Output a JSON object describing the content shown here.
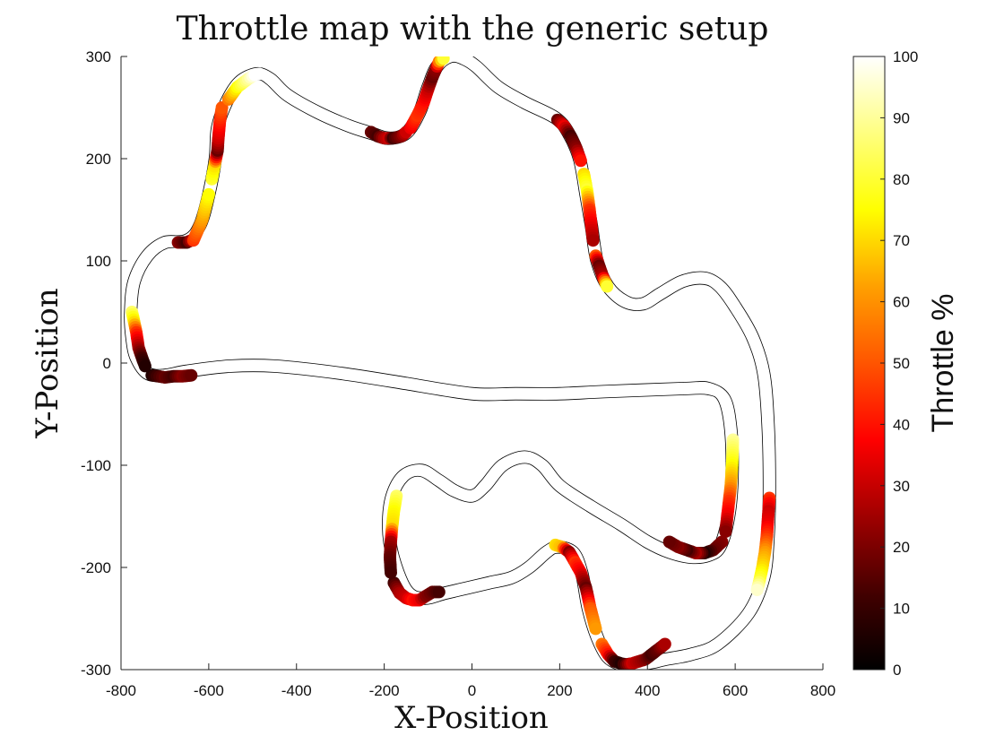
{
  "chart_data": {
    "type": "scatter",
    "title": "Throttle map with the generic setup",
    "xlabel": "X-Position",
    "ylabel": "Y-Position",
    "xlim": [
      -800,
      800
    ],
    "ylim": [
      -300,
      300
    ],
    "xticks": [
      -800,
      -600,
      -400,
      -200,
      0,
      200,
      400,
      600,
      800
    ],
    "yticks": [
      -300,
      -200,
      -100,
      0,
      100,
      200,
      300
    ],
    "grid": false,
    "colorbar": {
      "label": "Throttle %",
      "min": 0,
      "max": 100,
      "ticks": [
        0,
        10,
        20,
        30,
        40,
        50,
        60,
        70,
        80,
        90,
        100
      ],
      "colormap": "hot"
    },
    "track_halfwidth": 7,
    "track_outline_color": "#000000",
    "track_centerline": [
      [
        -150,
        -20
      ],
      [
        -300,
        -10
      ],
      [
        -450,
        -3
      ],
      [
        -550,
        -3
      ],
      [
        -650,
        -8
      ],
      [
        -700,
        -12
      ],
      [
        -740,
        -10
      ],
      [
        -765,
        5
      ],
      [
        -775,
        25
      ],
      [
        -778,
        50
      ],
      [
        -770,
        80
      ],
      [
        -740,
        105
      ],
      [
        -700,
        118
      ],
      [
        -650,
        120
      ],
      [
        -620,
        135
      ],
      [
        -600,
        165
      ],
      [
        -585,
        200
      ],
      [
        -580,
        230
      ],
      [
        -560,
        255
      ],
      [
        -530,
        275
      ],
      [
        -490,
        283
      ],
      [
        -460,
        278
      ],
      [
        -420,
        262
      ],
      [
        -350,
        245
      ],
      [
        -280,
        232
      ],
      [
        -230,
        225
      ],
      [
        -190,
        220
      ],
      [
        -150,
        225
      ],
      [
        -120,
        245
      ],
      [
        -100,
        270
      ],
      [
        -80,
        290
      ],
      [
        -50,
        300
      ],
      [
        -20,
        298
      ],
      [
        10,
        290
      ],
      [
        60,
        270
      ],
      [
        120,
        255
      ],
      [
        190,
        240
      ],
      [
        220,
        225
      ],
      [
        245,
        200
      ],
      [
        260,
        165
      ],
      [
        272,
        135
      ],
      [
        285,
        100
      ],
      [
        310,
        75
      ],
      [
        350,
        60
      ],
      [
        390,
        58
      ],
      [
        430,
        68
      ],
      [
        480,
        80
      ],
      [
        530,
        83
      ],
      [
        565,
        75
      ],
      [
        600,
        55
      ],
      [
        640,
        25
      ],
      [
        665,
        -10
      ],
      [
        675,
        -60
      ],
      [
        678,
        -120
      ],
      [
        675,
        -170
      ],
      [
        665,
        -210
      ],
      [
        630,
        -245
      ],
      [
        560,
        -275
      ],
      [
        500,
        -285
      ],
      [
        440,
        -290
      ],
      [
        410,
        -293
      ],
      [
        370,
        -295
      ],
      [
        340,
        -295
      ],
      [
        310,
        -288
      ],
      [
        285,
        -268
      ],
      [
        265,
        -240
      ],
      [
        250,
        -205
      ],
      [
        230,
        -185
      ],
      [
        195,
        -180
      ],
      [
        170,
        -185
      ],
      [
        130,
        -200
      ],
      [
        90,
        -210
      ],
      [
        40,
        -215
      ],
      [
        -10,
        -220
      ],
      [
        -60,
        -225
      ],
      [
        -110,
        -230
      ],
      [
        -150,
        -222
      ],
      [
        -180,
        -190
      ],
      [
        -190,
        -160
      ],
      [
        -182,
        -130
      ],
      [
        -155,
        -110
      ],
      [
        -115,
        -105
      ],
      [
        -75,
        -115
      ],
      [
        -40,
        -125
      ],
      [
        0,
        -130
      ],
      [
        30,
        -120
      ],
      [
        70,
        -100
      ],
      [
        120,
        -92
      ],
      [
        160,
        -100
      ],
      [
        200,
        -120
      ],
      [
        270,
        -140
      ],
      [
        340,
        -158
      ],
      [
        400,
        -175
      ],
      [
        450,
        -185
      ],
      [
        500,
        -190
      ],
      [
        540,
        -188
      ],
      [
        565,
        -180
      ],
      [
        585,
        -150
      ],
      [
        593,
        -110
      ],
      [
        590,
        -65
      ],
      [
        575,
        -35
      ],
      [
        540,
        -25
      ],
      [
        480,
        -25
      ],
      [
        300,
        -28
      ],
      [
        200,
        -30
      ],
      [
        100,
        -30
      ],
      [
        0,
        -30
      ],
      [
        -150,
        -20
      ]
    ],
    "throttle_segments": [
      {
        "x": [
          -730,
          -700,
          -680,
          -660,
          -640
        ],
        "y": [
          -12,
          -14,
          -13,
          -13,
          -12
        ],
        "throttle": [
          5,
          15,
          10,
          20,
          15
        ]
      },
      {
        "x": [
          -775,
          -770,
          -765,
          -760,
          -752,
          -745
        ],
        "y": [
          50,
          40,
          30,
          15,
          5,
          -3
        ],
        "throttle": [
          85,
          70,
          45,
          25,
          10,
          5
        ]
      },
      {
        "x": [
          -670,
          -650,
          -640
        ],
        "y": [
          118,
          118,
          120
        ],
        "throttle": [
          20,
          10,
          25
        ]
      },
      {
        "x": [
          -635,
          -615,
          -600
        ],
        "y": [
          120,
          140,
          165
        ],
        "throttle": [
          45,
          60,
          75
        ]
      },
      {
        "x": [
          -593,
          -586,
          -580,
          -578,
          -575,
          -570
        ],
        "y": [
          180,
          195,
          208,
          220,
          235,
          250
        ],
        "throttle": [
          80,
          70,
          15,
          30,
          40,
          50
        ]
      },
      {
        "x": [
          -555,
          -535,
          -510,
          -495,
          -485
        ],
        "y": [
          258,
          270,
          278,
          282,
          283
        ],
        "throttle": [
          55,
          75,
          90,
          100,
          100
        ]
      },
      {
        "x": [
          -230,
          -215,
          -200,
          -190,
          -180,
          -160,
          -150
        ],
        "y": [
          226,
          222,
          220,
          220,
          220,
          222,
          226
        ],
        "throttle": [
          15,
          10,
          25,
          30,
          10,
          20,
          30
        ]
      },
      {
        "x": [
          -140,
          -125,
          -110,
          -100,
          -90,
          -82,
          -75,
          -65
        ],
        "y": [
          230,
          242,
          255,
          268,
          280,
          288,
          295,
          298
        ],
        "throttle": [
          35,
          45,
          40,
          30,
          15,
          20,
          55,
          80
        ]
      },
      {
        "x": [
          195,
          210,
          225,
          238,
          248
        ],
        "y": [
          238,
          232,
          222,
          210,
          198
        ],
        "throttle": [
          15,
          35,
          10,
          20,
          40
        ]
      },
      {
        "x": [
          255,
          262,
          268,
          272,
          276
        ],
        "y": [
          185,
          170,
          150,
          135,
          120
        ],
        "throttle": [
          70,
          80,
          45,
          35,
          25
        ]
      },
      {
        "x": [
          282,
          290,
          298,
          308
        ],
        "y": [
          105,
          95,
          85,
          75
        ],
        "throttle": [
          50,
          15,
          25,
          80
        ]
      },
      {
        "x": [
          595,
          593,
          590,
          586,
          582,
          578
        ],
        "y": [
          -75,
          -100,
          -120,
          -135,
          -150,
          -165
        ],
        "throttle": [
          90,
          75,
          60,
          45,
          35,
          20
        ]
      },
      {
        "x": [
          570,
          550,
          530,
          510,
          490,
          470,
          450
        ],
        "y": [
          -175,
          -183,
          -186,
          -186,
          -183,
          -180,
          -175
        ],
        "throttle": [
          20,
          15,
          5,
          25,
          10,
          20,
          15
        ]
      },
      {
        "x": [
          678,
          676,
          674,
          672,
          668,
          662,
          656,
          650
        ],
        "y": [
          -132,
          -145,
          -158,
          -170,
          -185,
          -200,
          -212,
          -222
        ],
        "throttle": [
          45,
          30,
          35,
          45,
          60,
          70,
          80,
          95
        ]
      },
      {
        "x": [
          -172,
          -178,
          -182,
          -185,
          -187,
          -185
        ],
        "y": [
          -130,
          -145,
          -160,
          -175,
          -190,
          -205
        ],
        "throttle": [
          85,
          75,
          70,
          25,
          15,
          10
        ]
      },
      {
        "x": [
          -178,
          -165,
          -150,
          -135,
          -120,
          -105,
          -90,
          -75
        ],
        "y": [
          -215,
          -225,
          -230,
          -232,
          -232,
          -228,
          -224,
          -224
        ],
        "throttle": [
          10,
          25,
          30,
          40,
          35,
          20,
          15,
          10
        ]
      },
      {
        "x": [
          190,
          205,
          222,
          235,
          248,
          260,
          270,
          282
        ],
        "y": [
          -178,
          -180,
          -185,
          -195,
          -205,
          -220,
          -240,
          -260
        ],
        "throttle": [
          70,
          65,
          20,
          45,
          35,
          15,
          50,
          60
        ]
      },
      {
        "x": [
          296,
          310,
          325,
          340,
          352,
          365,
          380,
          395,
          410,
          425,
          440
        ],
        "y": [
          -275,
          -285,
          -292,
          -294,
          -295,
          -294,
          -292,
          -290,
          -285,
          -280,
          -275
        ],
        "throttle": [
          55,
          40,
          10,
          5,
          15,
          30,
          25,
          20,
          10,
          15,
          25
        ]
      }
    ]
  }
}
